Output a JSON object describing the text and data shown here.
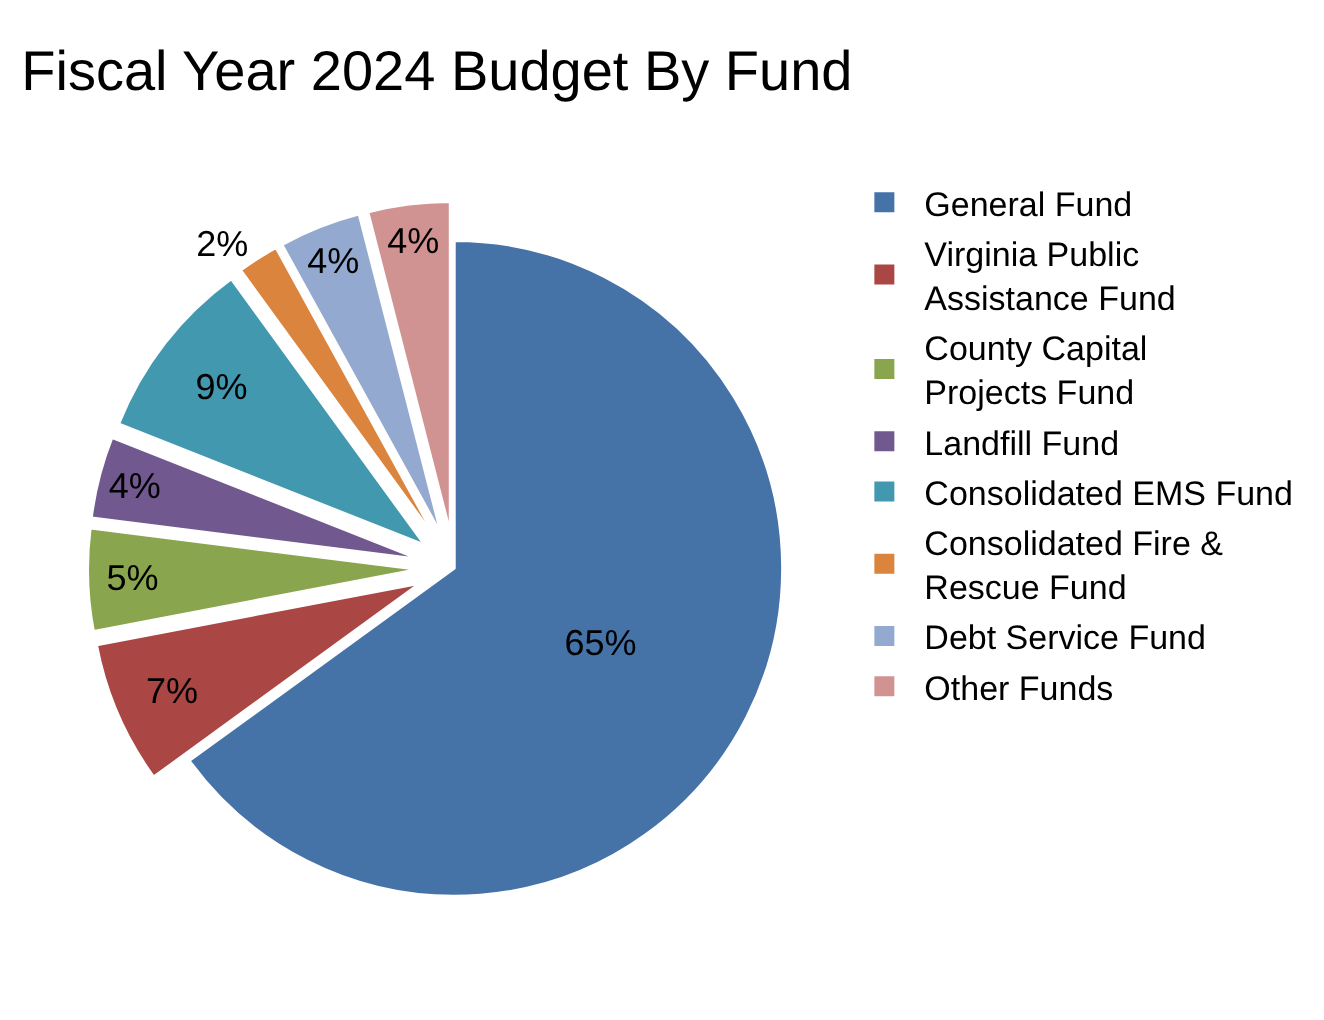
{
  "chart_data": {
    "type": "pie",
    "title": "Fiscal Year 2024 Budget By Fund",
    "categories": [
      "General Fund",
      "Virginia Public Assistance Fund",
      "County Capital Projects Fund",
      "Landfill Fund",
      "Consolidated EMS Fund",
      "Consolidated Fire & Rescue Fund",
      "Debt Service Fund",
      "Other Funds"
    ],
    "values": [
      65,
      7,
      5,
      4,
      9,
      2,
      4,
      4
    ],
    "value_labels": [
      "65%",
      "7%",
      "5%",
      "4%",
      "9%",
      "2%",
      "4%",
      "4%"
    ],
    "colors": [
      "#4572a7",
      "#aa4643",
      "#89a54e",
      "#71588f",
      "#4198af",
      "#db843d",
      "#93a9cf",
      "#d19392"
    ],
    "legend": "right"
  }
}
